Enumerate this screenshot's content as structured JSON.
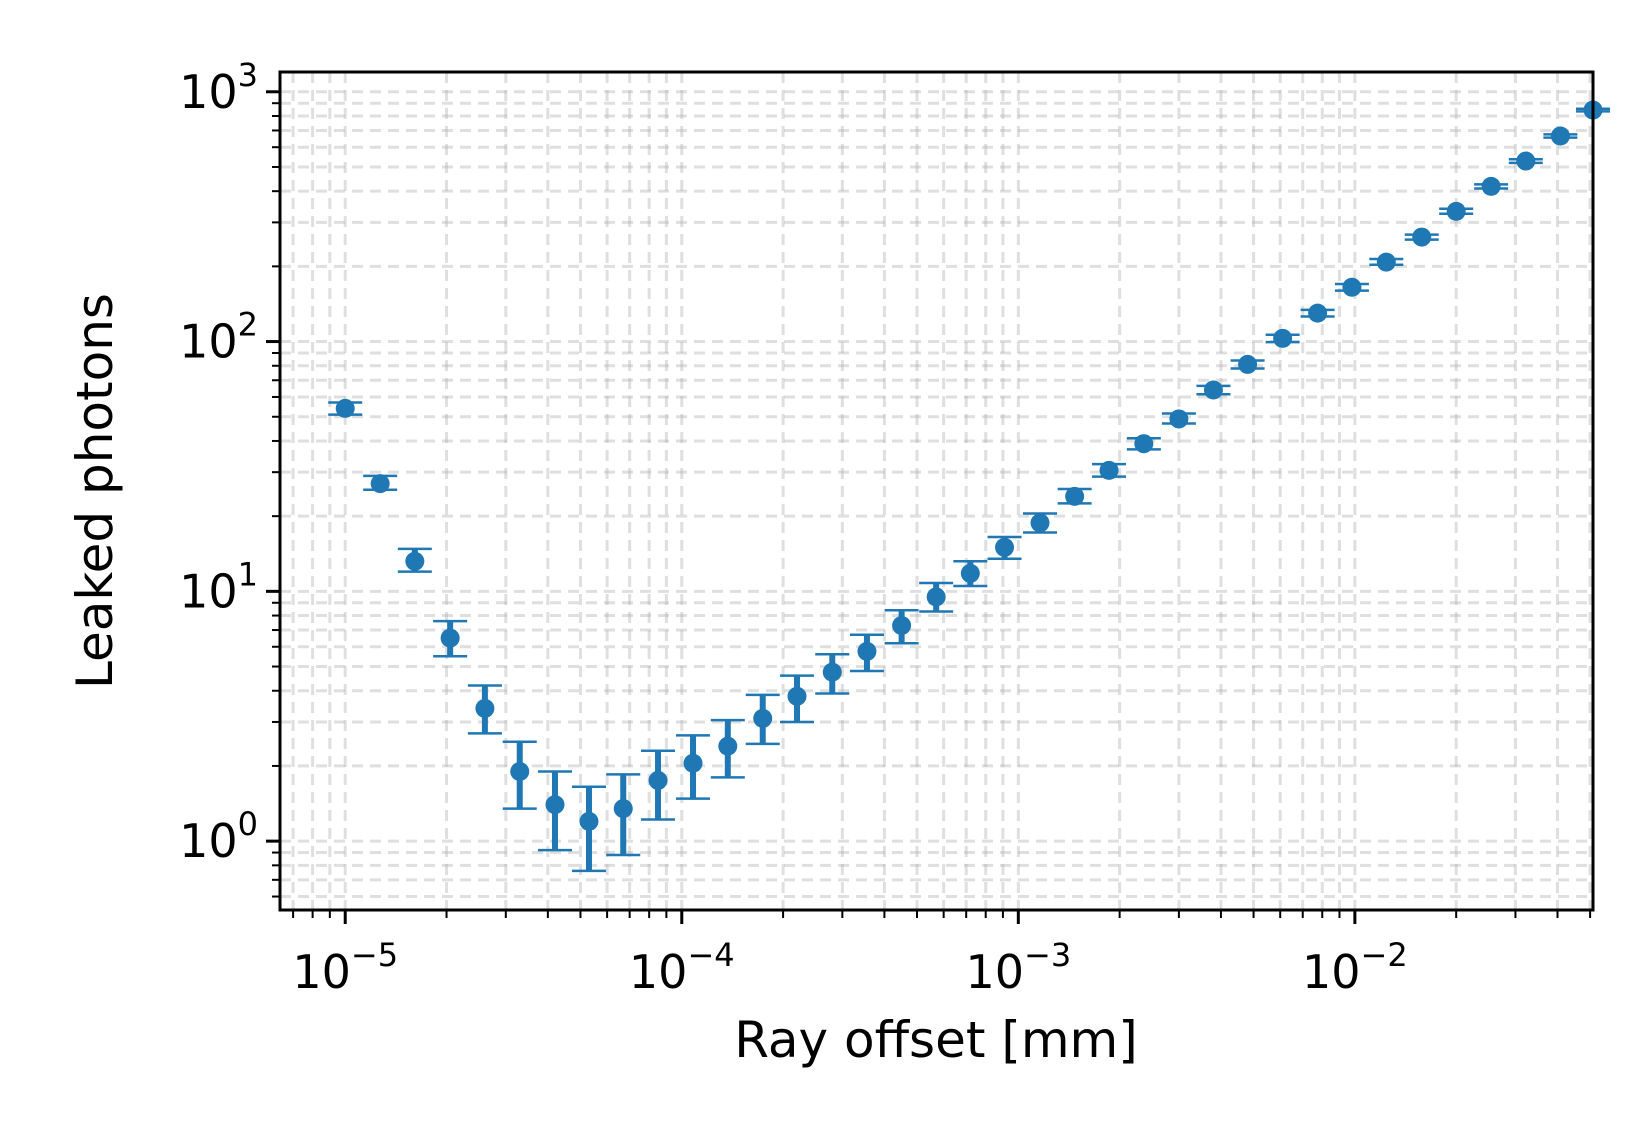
{
  "chart_data": {
    "type": "scatter",
    "xlabel": "Ray offset [mm]",
    "ylabel": "Leaked photons",
    "xscale": "log",
    "yscale": "log",
    "xlim": [
      6.4e-06,
      0.051
    ],
    "ylim": [
      0.53,
      1200
    ],
    "grid": true,
    "color": "#1f77b4",
    "x_ticks": [
      {
        "base": "10",
        "exp": "−5"
      },
      {
        "base": "10",
        "exp": "−4"
      },
      {
        "base": "10",
        "exp": "−3"
      },
      {
        "base": "10",
        "exp": "−2"
      }
    ],
    "y_ticks": [
      {
        "base": "10",
        "exp": "0"
      },
      {
        "base": "10",
        "exp": "1"
      },
      {
        "base": "10",
        "exp": "2"
      },
      {
        "base": "10",
        "exp": "3"
      }
    ],
    "series": [
      {
        "points": [
          {
            "x": 1e-05,
            "y": 54,
            "lo": 51,
            "hi": 57
          },
          {
            "x": 1.27e-05,
            "y": 27,
            "lo": 25.5,
            "hi": 29
          },
          {
            "x": 1.61e-05,
            "y": 13.2,
            "lo": 12,
            "hi": 14.8
          },
          {
            "x": 2.05e-05,
            "y": 6.5,
            "lo": 5.5,
            "hi": 7.6
          },
          {
            "x": 2.6e-05,
            "y": 3.4,
            "lo": 2.7,
            "hi": 4.2
          },
          {
            "x": 3.3e-05,
            "y": 1.9,
            "lo": 1.35,
            "hi": 2.5
          },
          {
            "x": 4.2e-05,
            "y": 1.4,
            "lo": 0.92,
            "hi": 1.9
          },
          {
            "x": 5.3e-05,
            "y": 1.2,
            "lo": 0.76,
            "hi": 1.65
          },
          {
            "x": 6.7e-05,
            "y": 1.35,
            "lo": 0.88,
            "hi": 1.85
          },
          {
            "x": 8.5e-05,
            "y": 1.75,
            "lo": 1.22,
            "hi": 2.3
          },
          {
            "x": 0.000108,
            "y": 2.05,
            "lo": 1.48,
            "hi": 2.65
          },
          {
            "x": 0.000137,
            "y": 2.4,
            "lo": 1.8,
            "hi": 3.05
          },
          {
            "x": 0.000174,
            "y": 3.1,
            "lo": 2.45,
            "hi": 3.85
          },
          {
            "x": 0.00022,
            "y": 3.8,
            "lo": 3.0,
            "hi": 4.6
          },
          {
            "x": 0.00028,
            "y": 4.75,
            "lo": 3.9,
            "hi": 5.6
          },
          {
            "x": 0.000355,
            "y": 5.75,
            "lo": 4.8,
            "hi": 6.7
          },
          {
            "x": 0.00045,
            "y": 7.3,
            "lo": 6.2,
            "hi": 8.4
          },
          {
            "x": 0.00057,
            "y": 9.5,
            "lo": 8.3,
            "hi": 10.8
          },
          {
            "x": 0.00072,
            "y": 11.8,
            "lo": 10.5,
            "hi": 13.2
          },
          {
            "x": 0.00091,
            "y": 15,
            "lo": 13.5,
            "hi": 16.5
          },
          {
            "x": 0.00116,
            "y": 18.8,
            "lo": 17.2,
            "hi": 20.5
          },
          {
            "x": 0.00147,
            "y": 24,
            "lo": 22.5,
            "hi": 25.7
          },
          {
            "x": 0.00186,
            "y": 30.5,
            "lo": 28.8,
            "hi": 32.3
          },
          {
            "x": 0.00236,
            "y": 39,
            "lo": 37,
            "hi": 41
          },
          {
            "x": 0.003,
            "y": 49,
            "lo": 47,
            "hi": 51.5
          },
          {
            "x": 0.0038,
            "y": 64,
            "lo": 61.5,
            "hi": 66.5
          },
          {
            "x": 0.0048,
            "y": 81,
            "lo": 78,
            "hi": 84
          },
          {
            "x": 0.0061,
            "y": 103,
            "lo": 99.5,
            "hi": 106.5
          },
          {
            "x": 0.00775,
            "y": 130,
            "lo": 126,
            "hi": 134
          },
          {
            "x": 0.0098,
            "y": 165,
            "lo": 160,
            "hi": 170
          },
          {
            "x": 0.0124,
            "y": 208,
            "lo": 203,
            "hi": 214
          },
          {
            "x": 0.0158,
            "y": 262,
            "lo": 256,
            "hi": 268
          },
          {
            "x": 0.02,
            "y": 332,
            "lo": 325,
            "hi": 340
          },
          {
            "x": 0.0254,
            "y": 418,
            "lo": 410,
            "hi": 426
          },
          {
            "x": 0.0322,
            "y": 528,
            "lo": 519,
            "hi": 537
          },
          {
            "x": 0.0408,
            "y": 665,
            "lo": 655,
            "hi": 675
          },
          {
            "x": 0.051,
            "y": 845,
            "lo": 835,
            "hi": 855
          }
        ]
      }
    ]
  }
}
